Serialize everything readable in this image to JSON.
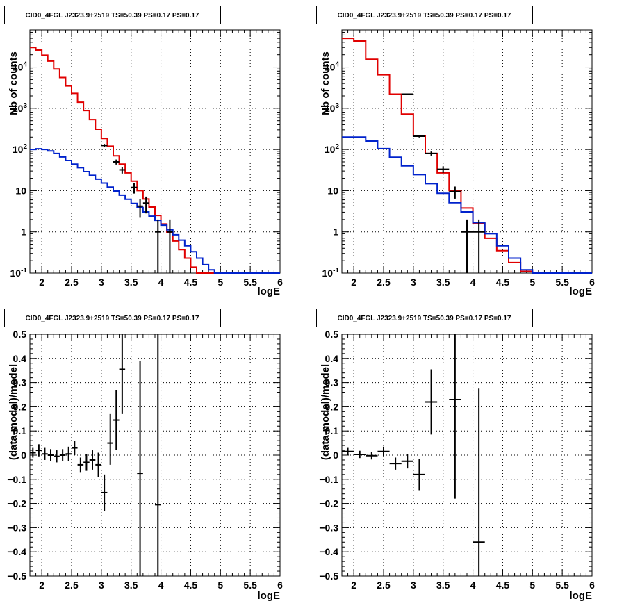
{
  "colors": {
    "data": "#000000",
    "total_model": "#e00000",
    "source_model": "#0022cc",
    "grid": "#000000"
  },
  "chart_data": [
    {
      "type": "line",
      "title": "CID0_4FGL J2323.9+2519 TS=50.39 PS=0.17 PS=0.17",
      "xlabel": "logE",
      "ylabel": "Nb of counts",
      "xlim": [
        1.8,
        6.0
      ],
      "ylim": [
        0.1,
        80000
      ],
      "yscale": "log",
      "xticks": [
        "2",
        "2.5",
        "3",
        "3.5",
        "4",
        "4.5",
        "5",
        "5.5",
        "6"
      ],
      "yticks": [
        "10^-1",
        "1",
        "10",
        "10^2",
        "10^3",
        "10^4"
      ],
      "grid": true,
      "bin_edges": [
        1.8,
        1.9,
        2.0,
        2.1,
        2.2,
        2.3,
        2.4,
        2.5,
        2.6,
        2.7,
        2.8,
        2.9,
        3.0,
        3.1,
        3.2,
        3.3,
        3.4,
        3.5,
        3.6,
        3.7,
        3.8,
        3.9,
        4.0,
        4.1,
        4.2,
        4.3,
        4.4,
        4.5,
        4.6,
        4.7,
        4.8,
        4.9,
        5.0,
        5.1,
        5.2,
        5.3,
        5.4,
        5.5,
        5.6,
        5.7,
        5.8,
        5.9,
        6.0
      ],
      "series": [
        {
          "style": "step",
          "color": "#e00000",
          "values": [
            30000,
            26000,
            19500,
            14000,
            9000,
            5600,
            3500,
            2300,
            1400,
            880,
            530,
            310,
            185,
            120,
            70,
            44,
            27,
            17,
            10,
            6.3,
            4,
            2.5,
            1.55,
            0.95,
            0.6,
            0.37,
            0.23,
            0.14,
            0.1,
            0.1,
            0.1,
            0.1,
            0.1,
            0.1,
            0.1,
            0.1,
            0.1,
            0.1,
            0.1,
            0.1,
            0.1,
            0.1
          ]
        },
        {
          "style": "step",
          "color": "#0022cc",
          "values": [
            100,
            104,
            100,
            92,
            80,
            66,
            54,
            44,
            36,
            29,
            23.5,
            19,
            15.3,
            12.2,
            9.8,
            7.8,
            6.2,
            4.9,
            3.9,
            3.05,
            2.4,
            1.9,
            1.45,
            1.12,
            0.85,
            0.63,
            0.46,
            0.33,
            0.23,
            0.16,
            0.12,
            0.1,
            0.1,
            0.1,
            0.1,
            0.1,
            0.1,
            0.1,
            0.1,
            0.1,
            0.1,
            0.1
          ]
        }
      ],
      "points": [
        {
          "x": 3.05,
          "y": 125,
          "xerr": 0.05,
          "ylo": 115,
          "yhi": 136
        },
        {
          "x": 3.25,
          "y": 50,
          "xerr": 0.05,
          "ylo": 43,
          "yhi": 57
        },
        {
          "x": 3.35,
          "y": 32,
          "xerr": 0.05,
          "ylo": 26,
          "yhi": 38
        },
        {
          "x": 3.55,
          "y": 12,
          "xerr": 0.05,
          "ylo": 8.5,
          "yhi": 15.5
        },
        {
          "x": 3.65,
          "y": 4.2,
          "xerr": 0.05,
          "ylo": 2.2,
          "yhi": 6.2
        },
        {
          "x": 3.75,
          "y": 5,
          "xerr": 0.05,
          "ylo": 2.8,
          "yhi": 7.2
        },
        {
          "x": 3.95,
          "y": 1,
          "xerr": 0.05,
          "ylo": 0.1,
          "yhi": 2
        },
        {
          "x": 4.15,
          "y": 1,
          "xerr": 0.05,
          "ylo": 0.1,
          "yhi": 2
        }
      ]
    },
    {
      "type": "line",
      "title": "CID0_4FGL J2323.9+2519 TS=50.39 PS=0.17 PS=0.17",
      "xlabel": "logE",
      "ylabel": "Nb of counts",
      "xlim": [
        1.8,
        6.0
      ],
      "ylim": [
        0.1,
        80000
      ],
      "yscale": "log",
      "xticks": [
        "2",
        "2.5",
        "3",
        "3.5",
        "4",
        "4.5",
        "5",
        "5.5",
        "6"
      ],
      "yticks": [
        "10^-1",
        "1",
        "10",
        "10^2",
        "10^3",
        "10^4"
      ],
      "grid": true,
      "bin_edges": [
        1.8,
        2.0,
        2.2,
        2.4,
        2.6,
        2.8,
        3.0,
        3.2,
        3.4,
        3.6,
        3.8,
        4.0,
        4.2,
        4.4,
        4.6,
        4.8,
        5.0,
        5.2,
        5.4,
        5.6,
        5.8,
        6.0
      ],
      "series": [
        {
          "style": "step",
          "color": "#e00000",
          "values": [
            50000,
            43000,
            15500,
            6500,
            2200,
            720,
            215,
            80,
            27,
            10,
            3.8,
            1.6,
            0.7,
            0.35,
            0.18,
            0.11,
            0.1,
            0.1,
            0.1,
            0.1,
            0.1
          ]
        },
        {
          "style": "step",
          "color": "#0022cc",
          "values": [
            200,
            200,
            160,
            105,
            65,
            40,
            24.5,
            14.8,
            8.6,
            5.1,
            3.05,
            1.68,
            0.9,
            0.46,
            0.23,
            0.12,
            0.1,
            0.1,
            0.1,
            0.1,
            0.1
          ]
        }
      ],
      "points": [
        {
          "x": 2.9,
          "y": 2200,
          "xerr": 0.1,
          "ylo": 2150,
          "yhi": 2250
        },
        {
          "x": 3.1,
          "y": 210,
          "xerr": 0.1,
          "ylo": 196,
          "yhi": 224
        },
        {
          "x": 3.3,
          "y": 80,
          "xerr": 0.1,
          "ylo": 71,
          "yhi": 89
        },
        {
          "x": 3.5,
          "y": 33,
          "xerr": 0.1,
          "ylo": 27,
          "yhi": 39
        },
        {
          "x": 3.7,
          "y": 9.5,
          "xerr": 0.1,
          "ylo": 6.4,
          "yhi": 12.6
        },
        {
          "x": 3.9,
          "y": 1,
          "xerr": 0.1,
          "ylo": 0.1,
          "yhi": 2
        },
        {
          "x": 4.1,
          "y": 1,
          "xerr": 0.1,
          "ylo": 0.1,
          "yhi": 2
        }
      ]
    },
    {
      "type": "scatter",
      "title": "CID0_4FGL J2323.9+2519 TS=50.39 PS=0.17 PS=0.17",
      "xlabel": "logE",
      "ylabel": "(data-model)/model",
      "xlim": [
        1.8,
        6.0
      ],
      "ylim": [
        -0.5,
        0.5
      ],
      "xticks": [
        "2",
        "2.5",
        "3",
        "3.5",
        "4",
        "4.5",
        "5",
        "5.5",
        "6"
      ],
      "yticks": [
        "-0.5",
        "-0.4",
        "-0.3",
        "-0.2",
        "-0.1",
        "0",
        "0.1",
        "0.2",
        "0.3",
        "0.4",
        "0.5"
      ],
      "grid": true,
      "points": [
        {
          "x": 1.85,
          "y": 0.01,
          "xerr": 0.05,
          "ylo": -0.01,
          "yhi": 0.03
        },
        {
          "x": 1.95,
          "y": 0.02,
          "xerr": 0.05,
          "ylo": -0.005,
          "yhi": 0.045
        },
        {
          "x": 2.05,
          "y": 0.005,
          "xerr": 0.05,
          "ylo": -0.02,
          "yhi": 0.03
        },
        {
          "x": 2.15,
          "y": 0.0,
          "xerr": 0.05,
          "ylo": -0.025,
          "yhi": 0.025
        },
        {
          "x": 2.25,
          "y": -0.005,
          "xerr": 0.05,
          "ylo": -0.03,
          "yhi": 0.02
        },
        {
          "x": 2.35,
          "y": 0.0,
          "xerr": 0.05,
          "ylo": -0.025,
          "yhi": 0.025
        },
        {
          "x": 2.45,
          "y": 0.005,
          "xerr": 0.05,
          "ylo": -0.025,
          "yhi": 0.035
        },
        {
          "x": 2.55,
          "y": 0.03,
          "xerr": 0.05,
          "ylo": 0.0,
          "yhi": 0.06
        },
        {
          "x": 2.65,
          "y": -0.04,
          "xerr": 0.05,
          "ylo": -0.07,
          "yhi": -0.01
        },
        {
          "x": 2.75,
          "y": -0.03,
          "xerr": 0.05,
          "ylo": -0.065,
          "yhi": 0.005
        },
        {
          "x": 2.85,
          "y": -0.02,
          "xerr": 0.05,
          "ylo": -0.06,
          "yhi": 0.02
        },
        {
          "x": 2.95,
          "y": -0.04,
          "xerr": 0.05,
          "ylo": -0.09,
          "yhi": 0.01
        },
        {
          "x": 3.05,
          "y": -0.155,
          "xerr": 0.05,
          "ylo": -0.23,
          "yhi": -0.08
        },
        {
          "x": 3.15,
          "y": 0.05,
          "xerr": 0.05,
          "ylo": -0.04,
          "yhi": 0.17
        },
        {
          "x": 3.25,
          "y": 0.145,
          "xerr": 0.05,
          "ylo": 0.02,
          "yhi": 0.27
        },
        {
          "x": 3.35,
          "y": 0.355,
          "xerr": 0.05,
          "ylo": 0.17,
          "yhi": 0.5
        },
        {
          "x": 3.65,
          "y": -0.075,
          "xerr": 0.05,
          "ylo": -0.5,
          "yhi": 0.39
        },
        {
          "x": 3.95,
          "y": -0.205,
          "xerr": 0.05,
          "ylo": -0.5,
          "yhi": 0.5
        }
      ]
    },
    {
      "type": "scatter",
      "title": "CID0_4FGL J2323.9+2519 TS=50.39 PS=0.17 PS=0.17",
      "xlabel": "logE",
      "ylabel": "(data-model)/model",
      "xlim": [
        1.8,
        6.0
      ],
      "ylim": [
        -0.5,
        0.5
      ],
      "xticks": [
        "2",
        "2.5",
        "3",
        "3.5",
        "4",
        "4.5",
        "5",
        "5.5",
        "6"
      ],
      "yticks": [
        "-0.5",
        "-0.4",
        "-0.3",
        "-0.2",
        "-0.1",
        "0",
        "0.1",
        "0.2",
        "0.3",
        "0.4",
        "0.5"
      ],
      "grid": true,
      "points": [
        {
          "x": 1.9,
          "y": 0.015,
          "xerr": 0.1,
          "ylo": 0.0,
          "yhi": 0.03
        },
        {
          "x": 2.1,
          "y": 0.003,
          "xerr": 0.1,
          "ylo": -0.012,
          "yhi": 0.018
        },
        {
          "x": 2.3,
          "y": -0.002,
          "xerr": 0.1,
          "ylo": -0.018,
          "yhi": 0.014
        },
        {
          "x": 2.5,
          "y": 0.015,
          "xerr": 0.1,
          "ylo": -0.005,
          "yhi": 0.035
        },
        {
          "x": 2.7,
          "y": -0.035,
          "xerr": 0.1,
          "ylo": -0.06,
          "yhi": -0.01
        },
        {
          "x": 2.9,
          "y": -0.025,
          "xerr": 0.1,
          "ylo": -0.055,
          "yhi": 0.005
        },
        {
          "x": 3.1,
          "y": -0.08,
          "xerr": 0.1,
          "ylo": -0.145,
          "yhi": -0.015
        },
        {
          "x": 3.3,
          "y": 0.22,
          "xerr": 0.1,
          "ylo": 0.085,
          "yhi": 0.355
        },
        {
          "x": 3.7,
          "y": 0.23,
          "xerr": 0.1,
          "ylo": -0.18,
          "yhi": 0.5
        },
        {
          "x": 4.1,
          "y": -0.36,
          "xerr": 0.1,
          "ylo": -0.5,
          "yhi": 0.275
        }
      ]
    }
  ]
}
